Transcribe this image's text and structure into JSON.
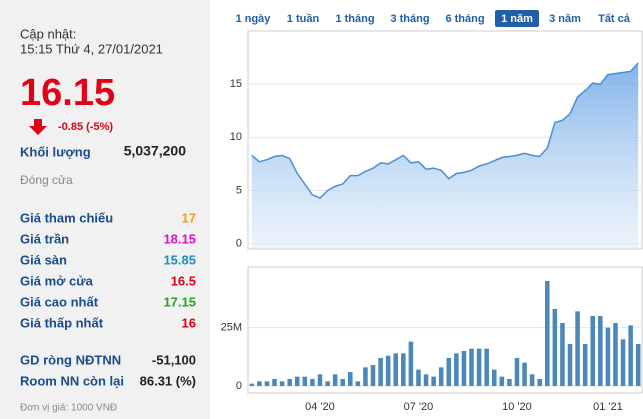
{
  "panel": {
    "updated_label": "Cập nhật:",
    "updated_time": "15:15 Thứ 4, 27/01/2021",
    "price": 16.15,
    "price_color": "#e00018",
    "change": "-0.85 (-5%)",
    "volume_label": "Khối lượng",
    "volume": "5,037,200",
    "status": "Đóng cửa",
    "rows": [
      {
        "label": "Giá tham chiếu",
        "value": 17,
        "color": "#f39c12"
      },
      {
        "label": "Giá trần",
        "value": 18.15,
        "color": "#e010d0"
      },
      {
        "label": "Giá sàn",
        "value": 15.85,
        "color": "#1a8fc0"
      },
      {
        "label": "Giá mở cửa",
        "value": 16.5,
        "color": "#e00018"
      },
      {
        "label": "Giá cao nhất",
        "value": 17.15,
        "color": "#1fa81f"
      },
      {
        "label": "Giá thấp nhất",
        "value": 16,
        "color": "#e00018"
      }
    ],
    "foreign": [
      {
        "label": "GD ròng NĐTNN",
        "value": "-51,100"
      },
      {
        "label": "Room NN còn lại",
        "value": "86.31 (%)"
      }
    ],
    "unit": "Đơn vị giá: 1000 VNĐ"
  },
  "tabs": {
    "items": [
      "1 ngày",
      "1 tuần",
      "1 tháng",
      "3 tháng",
      "6 tháng",
      "1 năm",
      "3 năm",
      "Tất cả"
    ],
    "selected": 5
  },
  "chart_data": [
    {
      "type": "area",
      "color": "#4a8fd6",
      "values": [
        8.3,
        7.7,
        7.9,
        8.2,
        8.3,
        8.0,
        6.6,
        5.6,
        4.6,
        4.3,
        5.0,
        5.4,
        5.6,
        6.4,
        6.4,
        6.8,
        7.1,
        7.6,
        7.5,
        7.9,
        8.3,
        7.6,
        7.7,
        7.0,
        7.1,
        6.9,
        6.1,
        6.6,
        6.7,
        6.9,
        7.3,
        7.5,
        7.8,
        8.1,
        8.2,
        8.3,
        8.5,
        8.3,
        8.2,
        9.0,
        11.4,
        11.6,
        12.2,
        13.8,
        14.4,
        15.1,
        15.0,
        15.9,
        16.0,
        16.1,
        16.2,
        17.0
      ],
      "ylim": [
        -0.5,
        20
      ],
      "yticks": [
        0,
        5,
        10,
        15
      ],
      "grid": true
    },
    {
      "type": "bar",
      "color": "#4b87b9",
      "categories": [
        null,
        null,
        null,
        null,
        null,
        null,
        null,
        null,
        null,
        "04 '20",
        null,
        null,
        null,
        null,
        null,
        null,
        null,
        null,
        null,
        null,
        null,
        null,
        "07 '20",
        null,
        null,
        null,
        null,
        null,
        null,
        null,
        null,
        null,
        null,
        null,
        null,
        "10 '20",
        null,
        null,
        null,
        null,
        null,
        null,
        null,
        null,
        null,
        null,
        null,
        "01 '21",
        null,
        null,
        null,
        null
      ],
      "values": [
        1000000,
        2000000,
        2000000,
        3000000,
        2000000,
        3000000,
        4000000,
        4000000,
        3000000,
        5000000,
        2000000,
        5000000,
        3000000,
        6000000,
        2000000,
        8000000,
        9000000,
        12000000,
        13000000,
        14000000,
        14000000,
        19000000,
        7000000,
        5000000,
        4000000,
        8000000,
        12000000,
        14000000,
        15000000,
        16000000,
        16000000,
        16000000,
        7000000,
        4000000,
        3000000,
        12000000,
        10000000,
        5000000,
        3000000,
        45000000,
        33000000,
        27000000,
        18000000,
        32000000,
        18000000,
        30000000,
        30000000,
        25000000,
        27000000,
        20000000,
        26000000,
        18000000
      ],
      "ylim": [
        -3000000,
        51000000
      ],
      "yticks": [
        0,
        {
          "value": 25000000,
          "label": "25M"
        }
      ],
      "grid": true
    }
  ]
}
